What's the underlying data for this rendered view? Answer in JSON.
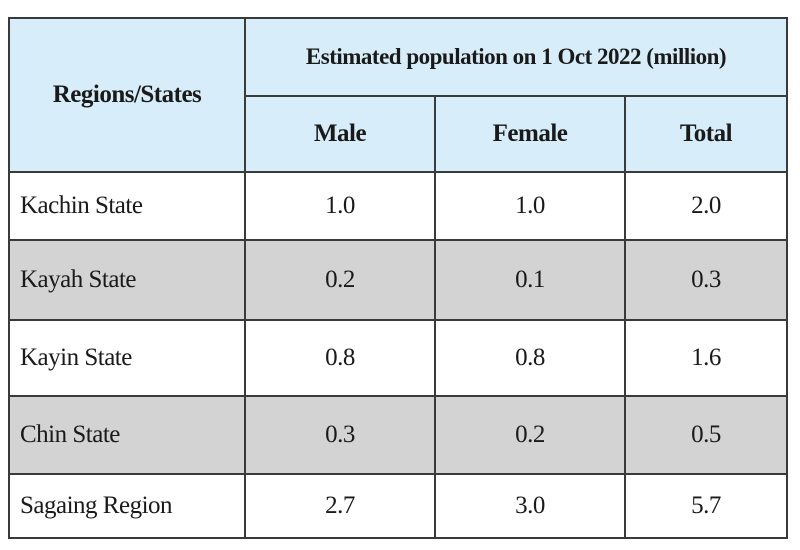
{
  "table": {
    "region_header": "Regions/States",
    "group_header": "Estimated population on 1 Oct 2022 (million)",
    "columns": [
      "Male",
      "Female",
      "Total"
    ],
    "rows": [
      {
        "name": "Kachin State",
        "male": "1.0",
        "female": "1.0",
        "total": "2.0"
      },
      {
        "name": "Kayah State",
        "male": "0.2",
        "female": "0.1",
        "total": "0.3"
      },
      {
        "name": "Kayin State",
        "male": "0.8",
        "female": "0.8",
        "total": "1.6"
      },
      {
        "name": "Chin State",
        "male": "0.3",
        "female": "0.2",
        "total": "0.5"
      },
      {
        "name": "Sagaing Region",
        "male": "2.7",
        "female": "3.0",
        "total": "5.7"
      }
    ]
  },
  "colors": {
    "header_bg": "#d7eefa",
    "shaded_row_bg": "#d3d3d3",
    "border": "#3a3a3a"
  }
}
